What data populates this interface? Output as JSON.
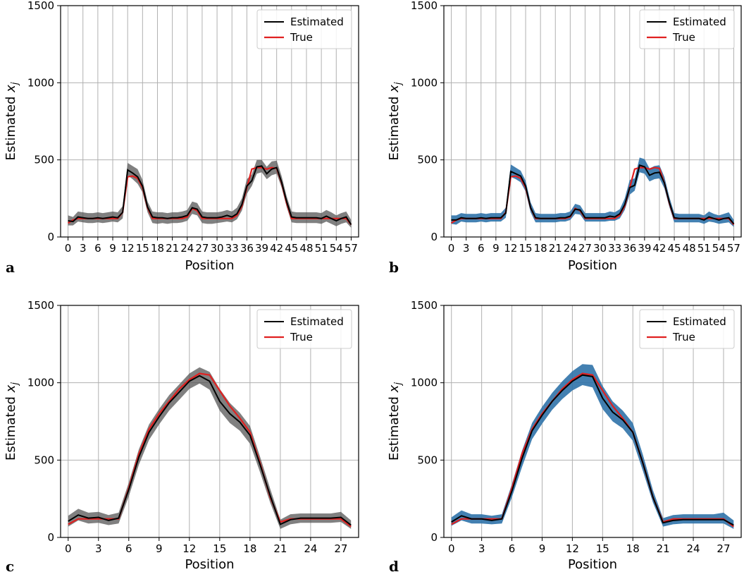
{
  "chart_data": [
    {
      "type": "line",
      "panel": "a",
      "band_color": "#555555",
      "xlabel": "Position",
      "ylabel": "Estimated x_j",
      "xlim": [
        -1.5,
        58.5
      ],
      "ylim": [
        0,
        1500
      ],
      "xticks": [
        0,
        3,
        6,
        9,
        12,
        15,
        18,
        21,
        24,
        27,
        30,
        33,
        36,
        39,
        42,
        45,
        48,
        51,
        54,
        57
      ],
      "yticks": [
        0,
        500,
        1000,
        1500
      ],
      "grid": true,
      "legend_position": "top-right",
      "legend": [
        "Estimated",
        "True"
      ],
      "series": [
        {
          "name": "Estimated",
          "color": "#000000",
          "values": [
            105,
            100,
            130,
            125,
            120,
            120,
            125,
            120,
            125,
            130,
            125,
            160,
            435,
            415,
            390,
            330,
            195,
            130,
            125,
            125,
            120,
            125,
            125,
            130,
            140,
            190,
            180,
            130,
            125,
            125,
            125,
            130,
            140,
            130,
            150,
            210,
            330,
            365,
            455,
            460,
            410,
            440,
            450,
            355,
            230,
            130,
            125,
            125,
            125,
            125,
            125,
            120,
            135,
            120,
            105,
            120,
            130,
            80
          ]
        },
        {
          "name": "True",
          "color": "#e02020",
          "values": [
            90,
            110,
            120,
            120,
            120,
            120,
            120,
            120,
            120,
            120,
            120,
            160,
            390,
            395,
            380,
            320,
            190,
            120,
            120,
            120,
            120,
            120,
            120,
            120,
            130,
            185,
            170,
            120,
            120,
            120,
            120,
            120,
            120,
            120,
            140,
            200,
            320,
            440,
            450,
            450,
            440,
            450,
            445,
            350,
            220,
            120,
            120,
            120,
            120,
            120,
            120,
            120,
            120,
            120,
            120,
            120,
            120,
            80
          ]
        },
        {
          "name": "band",
          "lower": [
            75,
            75,
            100,
            95,
            90,
            90,
            95,
            90,
            95,
            100,
            95,
            120,
            400,
            375,
            345,
            290,
            160,
            90,
            85,
            90,
            85,
            90,
            90,
            95,
            105,
            150,
            140,
            90,
            85,
            85,
            90,
            95,
            100,
            95,
            115,
            170,
            280,
            330,
            410,
            420,
            375,
            400,
            410,
            320,
            195,
            95,
            90,
            90,
            90,
            90,
            90,
            85,
            100,
            85,
            70,
            85,
            95,
            60
          ],
          "upper": [
            140,
            130,
            165,
            160,
            155,
            155,
            160,
            155,
            160,
            165,
            160,
            200,
            480,
            460,
            440,
            370,
            230,
            165,
            160,
            160,
            155,
            160,
            160,
            165,
            175,
            230,
            220,
            165,
            160,
            160,
            160,
            165,
            175,
            165,
            190,
            250,
            375,
            405,
            500,
            500,
            455,
            490,
            495,
            395,
            265,
            165,
            160,
            160,
            160,
            160,
            160,
            155,
            175,
            160,
            140,
            155,
            165,
            110
          ]
        }
      ]
    },
    {
      "type": "line",
      "panel": "b",
      "band_color": "#2f72a8",
      "xlabel": "Position",
      "ylabel": "Estimated x_j",
      "xlim": [
        -1.5,
        58.5
      ],
      "ylim": [
        0,
        1500
      ],
      "xticks": [
        0,
        3,
        6,
        9,
        12,
        15,
        18,
        21,
        24,
        27,
        30,
        33,
        36,
        39,
        42,
        45,
        48,
        51,
        54,
        57
      ],
      "yticks": [
        0,
        500,
        1000,
        1500
      ],
      "grid": true,
      "legend_position": "top-right",
      "legend": [
        "Estimated",
        "True"
      ],
      "series": [
        {
          "name": "Estimated",
          "color": "#000000",
          "values": [
            110,
            110,
            125,
            120,
            120,
            120,
            125,
            120,
            125,
            125,
            125,
            155,
            425,
            410,
            395,
            330,
            190,
            125,
            120,
            120,
            120,
            120,
            125,
            125,
            135,
            180,
            175,
            125,
            125,
            125,
            125,
            125,
            135,
            130,
            150,
            210,
            320,
            335,
            465,
            455,
            400,
            415,
            420,
            350,
            225,
            125,
            120,
            120,
            120,
            120,
            120,
            110,
            130,
            120,
            110,
            120,
            125,
            85
          ]
        },
        {
          "name": "True",
          "color": "#e02020",
          "values": [
            90,
            110,
            120,
            120,
            120,
            120,
            120,
            120,
            120,
            120,
            120,
            160,
            390,
            395,
            380,
            320,
            190,
            120,
            120,
            120,
            120,
            120,
            120,
            120,
            130,
            185,
            170,
            120,
            120,
            120,
            120,
            120,
            120,
            120,
            140,
            200,
            320,
            440,
            450,
            450,
            440,
            450,
            445,
            350,
            220,
            120,
            120,
            120,
            120,
            120,
            120,
            120,
            120,
            120,
            120,
            120,
            120,
            80
          ]
        },
        {
          "name": "band",
          "lower": [
            85,
            80,
            100,
            95,
            95,
            95,
            100,
            95,
            100,
            100,
            100,
            125,
            390,
            375,
            355,
            295,
            160,
            95,
            95,
            95,
            95,
            95,
            100,
            100,
            110,
            150,
            145,
            100,
            100,
            100,
            100,
            100,
            105,
            105,
            120,
            175,
            275,
            300,
            420,
            410,
            360,
            375,
            380,
            315,
            195,
            95,
            95,
            95,
            95,
            95,
            95,
            85,
            100,
            95,
            85,
            90,
            95,
            65
          ],
          "upper": [
            140,
            140,
            155,
            150,
            150,
            150,
            155,
            150,
            155,
            155,
            155,
            190,
            470,
            450,
            430,
            365,
            225,
            155,
            150,
            150,
            150,
            150,
            155,
            155,
            165,
            215,
            205,
            155,
            155,
            155,
            155,
            155,
            165,
            160,
            180,
            250,
            370,
            380,
            515,
            505,
            445,
            460,
            465,
            390,
            260,
            155,
            150,
            150,
            150,
            150,
            150,
            140,
            165,
            150,
            140,
            150,
            160,
            110
          ]
        }
      ]
    },
    {
      "type": "line",
      "panel": "c",
      "band_color": "#555555",
      "xlabel": "Position",
      "ylabel": "Estimated x_j",
      "xlim": [
        -0.75,
        28.75
      ],
      "ylim": [
        0,
        1500
      ],
      "xticks": [
        0,
        3,
        6,
        9,
        12,
        15,
        18,
        21,
        24,
        27
      ],
      "yticks": [
        0,
        500,
        1000,
        1500
      ],
      "grid": true,
      "legend_position": "top-right",
      "legend": [
        "Estimated",
        "True"
      ],
      "series": [
        {
          "name": "Estimated",
          "color": "#000000",
          "values": [
            105,
            145,
            125,
            130,
            110,
            125,
            310,
            520,
            680,
            780,
            870,
            940,
            1010,
            1045,
            1010,
            880,
            800,
            745,
            660,
            470,
            270,
            85,
            115,
            125,
            125,
            125,
            125,
            130,
            80
          ]
        },
        {
          "name": "True",
          "color": "#e02020",
          "values": [
            85,
            120,
            120,
            120,
            120,
            120,
            320,
            540,
            700,
            800,
            880,
            960,
            1020,
            1060,
            1050,
            950,
            850,
            770,
            680,
            480,
            260,
            100,
            120,
            120,
            120,
            120,
            120,
            120,
            70
          ]
        },
        {
          "name": "band",
          "lower": [
            70,
            110,
            90,
            95,
            80,
            90,
            265,
            470,
            630,
            730,
            820,
            890,
            960,
            995,
            955,
            820,
            740,
            690,
            605,
            420,
            225,
            55,
            85,
            95,
            95,
            95,
            95,
            100,
            55
          ],
          "upper": [
            140,
            185,
            160,
            165,
            145,
            160,
            355,
            570,
            730,
            830,
            920,
            990,
            1060,
            1100,
            1070,
            960,
            870,
            805,
            720,
            520,
            315,
            115,
            150,
            155,
            155,
            155,
            155,
            165,
            110
          ]
        }
      ]
    },
    {
      "type": "line",
      "panel": "d",
      "band_color": "#2f72a8",
      "xlabel": "Position",
      "ylabel": "Estimated x_j",
      "xlim": [
        -0.75,
        28.75
      ],
      "ylim": [
        0,
        1500
      ],
      "xticks": [
        0,
        3,
        6,
        9,
        12,
        15,
        18,
        21,
        24,
        27
      ],
      "yticks": [
        0,
        500,
        1000,
        1500
      ],
      "grid": true,
      "legend_position": "top-right",
      "legend": [
        "Estimated",
        "True"
      ],
      "series": [
        {
          "name": "Estimated",
          "color": "#000000",
          "values": [
            100,
            140,
            120,
            120,
            110,
            120,
            300,
            510,
            690,
            790,
            880,
            950,
            1010,
            1050,
            1040,
            900,
            810,
            760,
            680,
            480,
            260,
            95,
            110,
            115,
            115,
            115,
            115,
            115,
            80
          ]
        },
        {
          "name": "True",
          "color": "#e02020",
          "values": [
            85,
            120,
            120,
            120,
            120,
            120,
            320,
            540,
            700,
            800,
            880,
            960,
            1020,
            1060,
            1050,
            950,
            850,
            770,
            680,
            480,
            260,
            100,
            120,
            120,
            120,
            120,
            120,
            120,
            70
          ]
        },
        {
          "name": "band",
          "lower": [
            75,
            110,
            90,
            90,
            85,
            90,
            260,
            455,
            635,
            735,
            825,
            895,
            950,
            985,
            970,
            830,
            750,
            705,
            625,
            430,
            225,
            70,
            85,
            90,
            90,
            90,
            90,
            90,
            55
          ],
          "upper": [
            130,
            175,
            150,
            150,
            140,
            150,
            345,
            560,
            740,
            845,
            935,
            1010,
            1075,
            1120,
            1115,
            980,
            880,
            820,
            740,
            535,
            305,
            125,
            145,
            150,
            150,
            150,
            150,
            160,
            110
          ]
        }
      ]
    }
  ]
}
